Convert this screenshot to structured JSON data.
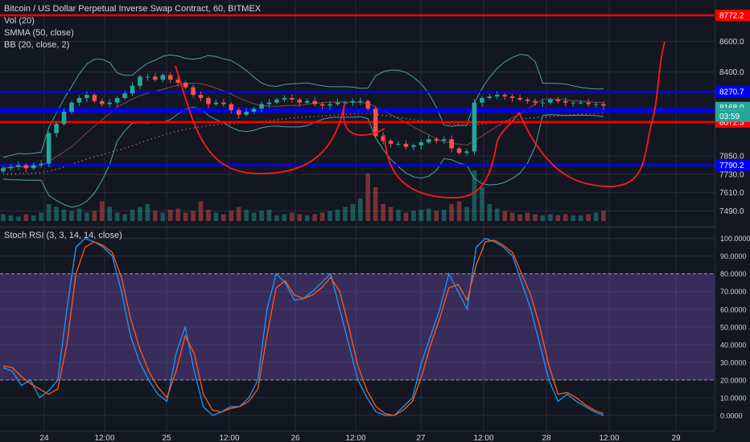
{
  "main_legend": [
    {
      "text": "Bitcoin / US Dollar Perpetual Inverse Swap Contract, 60, BITMEX"
    },
    {
      "text": "Vol (20)"
    },
    {
      "text": "SMMA (50, close)"
    },
    {
      "text": "BB (20, close, 2)"
    }
  ],
  "stoch_legend": "Stoch RSI (3, 3, 14, 14, close)",
  "colors": {
    "up": "#26a69a",
    "down": "#ef5350",
    "blue_line": "#0000ff",
    "red_line": "#ff0000",
    "k": "#2196f3",
    "d": "#ff5722",
    "band": "#7e57c2"
  },
  "chart_data": [
    {
      "type": "candlestick",
      "title": "Bitcoin / US Dollar Perpetual Inverse Swap Contract, 60, BITMEX",
      "ylim": [
        7440,
        8830
      ],
      "y_ticks": [
        "8600.0",
        "8400.0",
        "7850.0",
        "7730.0",
        "7610.0",
        "7490.0"
      ],
      "x_ticks": [
        "24",
        "12:00",
        "25",
        "12:00",
        "26",
        "12:00",
        "27",
        "12:00",
        "28",
        "12:00",
        "29"
      ],
      "horizontal_levels": [
        {
          "value": 8772.2,
          "label": "8772.2",
          "color": "#ff0000"
        },
        {
          "value": 8270.7,
          "label": "8270.7",
          "color": "#0000ff"
        },
        {
          "value": 8150.6,
          "label": "8150.6",
          "color": "#0000ff"
        },
        {
          "value": 8072.3,
          "label": "8072.3",
          "color": "#ff0000"
        },
        {
          "value": 7790.2,
          "label": "7790.2",
          "color": "#0000ff"
        }
      ],
      "price_labels": [
        {
          "value": 8168.0,
          "label": "8168.0"
        },
        {
          "value": 8129.0,
          "label": "8129.0"
        },
        {
          "value": 8110.0,
          "label": "03:59"
        }
      ],
      "close_series": [
        7770,
        7780,
        7790,
        7770,
        7790,
        7800,
        8000,
        8060,
        8140,
        8200,
        8230,
        8250,
        8210,
        8190,
        8200,
        8230,
        8260,
        8310,
        8370,
        8370,
        8350,
        8380,
        8350,
        8330,
        8300,
        8250,
        8230,
        8190,
        8200,
        8190,
        8150,
        8120,
        8140,
        8160,
        8190,
        8200,
        8220,
        8230,
        8220,
        8200,
        8210,
        8190,
        8180,
        8190,
        8200,
        8200,
        8210,
        8210,
        8160,
        7980,
        7950,
        7930,
        7930,
        7910,
        7920,
        7940,
        7960,
        7950,
        7960,
        7900,
        7870,
        7880,
        8200,
        8230,
        8240,
        8250,
        8240,
        8230,
        8220,
        8210,
        8200,
        8200,
        8220,
        8210,
        8200,
        8200,
        8200,
        8190,
        8190,
        8180
      ],
      "volume_relative": [
        0.12,
        0.1,
        0.08,
        0.12,
        0.1,
        0.15,
        0.3,
        0.25,
        0.2,
        0.18,
        0.22,
        0.15,
        0.18,
        0.35,
        0.25,
        0.15,
        0.12,
        0.2,
        0.25,
        0.3,
        0.18,
        0.15,
        0.2,
        0.22,
        0.15,
        0.18,
        0.35,
        0.2,
        0.15,
        0.12,
        0.18,
        0.25,
        0.2,
        0.15,
        0.18,
        0.2,
        0.1,
        0.12,
        0.15,
        0.12,
        0.1,
        0.12,
        0.15,
        0.18,
        0.2,
        0.25,
        0.3,
        0.4,
        0.85,
        0.6,
        0.3,
        0.25,
        0.2,
        0.15,
        0.18,
        0.2,
        0.22,
        0.18,
        0.2,
        0.3,
        0.35,
        0.25,
        0.9,
        0.6,
        0.3,
        0.22,
        0.18,
        0.15,
        0.12,
        0.15,
        0.12,
        0.1,
        0.12,
        0.1,
        0.12,
        0.1,
        0.1,
        0.12,
        0.15,
        0.18
      ]
    },
    {
      "type": "line",
      "title": "Stoch RSI (3, 3, 14, 14, close)",
      "ylim": [
        -5,
        103
      ],
      "y_ticks": [
        "100.0000",
        "90.0000",
        "80.0000",
        "70.0000",
        "60.0000",
        "50.0000",
        "40.0000",
        "30.0000",
        "20.0000",
        "10.0000",
        "0.0000"
      ],
      "band": [
        20,
        80
      ],
      "series": [
        {
          "values": [
            27,
            25,
            17,
            20,
            10,
            14,
            20,
            60,
            95,
            100,
            98,
            95,
            90,
            70,
            45,
            30,
            20,
            12,
            8,
            35,
            50,
            25,
            5,
            0,
            2,
            5,
            5,
            10,
            20,
            60,
            80,
            75,
            65,
            66,
            70,
            75,
            80,
            60,
            40,
            20,
            10,
            2,
            0,
            0,
            5,
            10,
            30,
            45,
            60,
            80,
            70,
            60,
            95,
            100,
            98,
            95,
            90,
            75,
            60,
            40,
            20,
            8,
            12,
            8,
            5,
            2,
            0
          ]
        },
        {
          "values": [
            28,
            27,
            22,
            18,
            15,
            12,
            15,
            40,
            80,
            95,
            98,
            96,
            92,
            78,
            55,
            38,
            25,
            16,
            10,
            25,
            45,
            35,
            12,
            3,
            2,
            4,
            5,
            8,
            15,
            45,
            72,
            76,
            68,
            66,
            68,
            72,
            78,
            70,
            50,
            28,
            14,
            5,
            1,
            0,
            3,
            8,
            22,
            40,
            55,
            72,
            74,
            65,
            85,
            98,
            99,
            96,
            92,
            80,
            68,
            50,
            28,
            12,
            13,
            10,
            6,
            3,
            1
          ]
        }
      ]
    }
  ]
}
